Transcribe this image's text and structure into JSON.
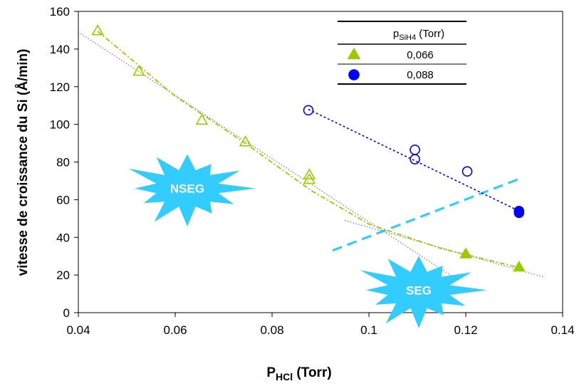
{
  "chart_data": {
    "type": "scatter",
    "xlabel_main": "P",
    "xlabel_sub": "HCl",
    "xlabel_unit": " (Torr)",
    "ylabel": "vitesse de croissance du Si (Å/min)",
    "xlim": [
      0.04,
      0.14
    ],
    "ylim": [
      0,
      160
    ],
    "x_ticks": [
      "0.04",
      "0.06",
      "0.08",
      "0.1",
      "0.12",
      "0.14"
    ],
    "y_ticks": [
      "0",
      "20",
      "40",
      "60",
      "80",
      "100",
      "120",
      "140",
      "160"
    ],
    "x_tick_values": [
      0.04,
      0.06,
      0.08,
      0.1,
      0.12,
      0.14
    ],
    "y_tick_values": [
      0,
      20,
      40,
      60,
      80,
      100,
      120,
      140,
      160
    ],
    "grid": false,
    "legend": {
      "placement": "top-right",
      "header_main": "p",
      "header_sub": "SiH4",
      "header_unit": " (Torr)",
      "entries": [
        {
          "label": "0,066",
          "marker": "triangle",
          "color": "#99CC00"
        },
        {
          "label": "0,088",
          "marker": "circle",
          "color": "#0000FF"
        }
      ]
    },
    "series": [
      {
        "name": "0,066",
        "color": "#99CC00",
        "marker": "triangle",
        "points": [
          {
            "x": 0.044,
            "y": 149.5,
            "filled": false
          },
          {
            "x": 0.0525,
            "y": 128,
            "filled": false
          },
          {
            "x": 0.0655,
            "y": 102,
            "filled": false
          },
          {
            "x": 0.0745,
            "y": 90.5,
            "filled": false
          },
          {
            "x": 0.0877,
            "y": 73,
            "filled": false
          },
          {
            "x": 0.0877,
            "y": 70.5,
            "filled": false
          },
          {
            "x": 0.12,
            "y": 31,
            "filled": true
          },
          {
            "x": 0.131,
            "y": 24,
            "filled": true
          }
        ],
        "trend": [
          [
            0.044,
            149.5
          ],
          [
            0.06,
            115
          ],
          [
            0.075,
            89
          ],
          [
            0.088,
            65
          ],
          [
            0.1,
            47
          ],
          [
            0.115,
            34
          ],
          [
            0.131,
            24
          ]
        ]
      },
      {
        "name": "0,088",
        "color": "#0000FF",
        "marker": "circle",
        "points": [
          {
            "x": 0.0875,
            "y": 107.5,
            "filled": false
          },
          {
            "x": 0.1095,
            "y": 86.5,
            "filled": false
          },
          {
            "x": 0.1095,
            "y": 81.5,
            "filled": false
          },
          {
            "x": 0.1203,
            "y": 75,
            "filled": false
          },
          {
            "x": 0.131,
            "y": 54,
            "filled": true
          },
          {
            "x": 0.131,
            "y": 53,
            "filled": true
          }
        ],
        "trend": [
          [
            0.0875,
            108
          ],
          [
            0.131,
            54
          ]
        ]
      }
    ],
    "reference_lines": [
      {
        "style": "dotted",
        "color": "#808080",
        "from": [
          0.04,
          149
        ],
        "to": [
          0.118,
          18
        ]
      },
      {
        "style": "dotted",
        "color": "#808080",
        "from": [
          0.095,
          49
        ],
        "to": [
          0.136,
          19
        ]
      },
      {
        "style": "dashed",
        "color": "#33CCFF",
        "from": [
          0.0925,
          33
        ],
        "to": [
          0.131,
          71
        ]
      }
    ],
    "annotations": [
      {
        "text": "NSEG",
        "color": "#33CCFF",
        "x": 0.0625,
        "y": 66
      },
      {
        "text": "SEG",
        "color": "#33CCFF",
        "x": 0.1103,
        "y": 12
      }
    ]
  }
}
